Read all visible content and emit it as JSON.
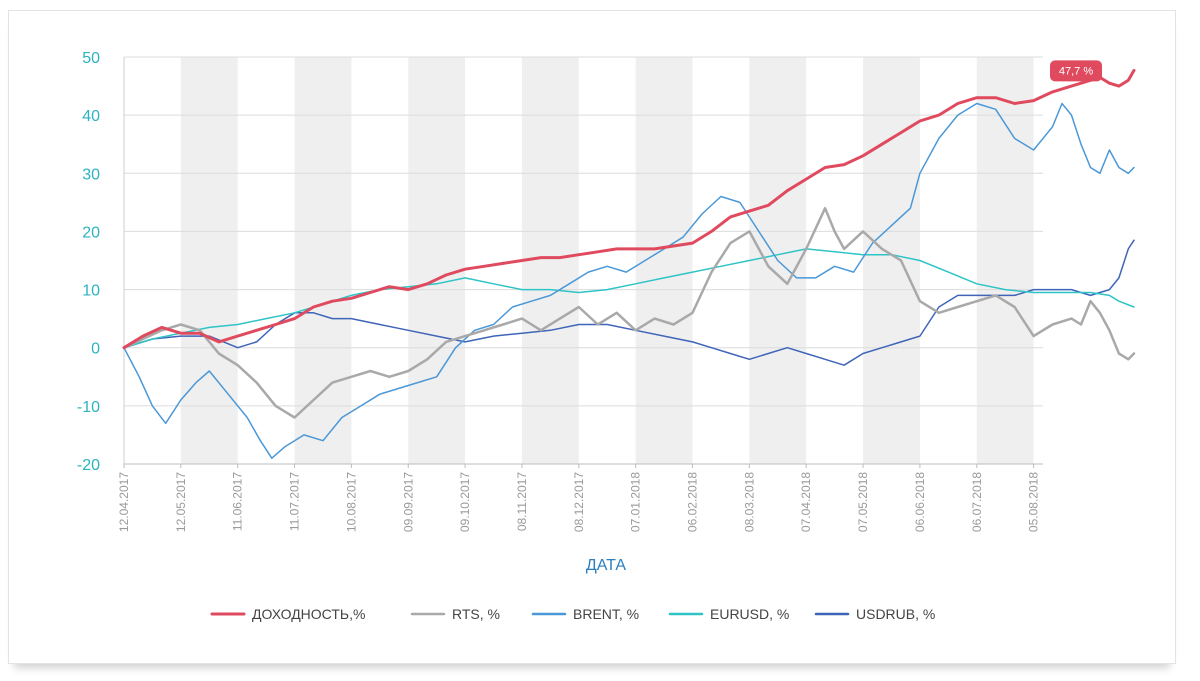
{
  "chart_data": {
    "type": "line",
    "xlabel": "ДАТА",
    "ylabel": "",
    "ylim": [
      -20,
      50
    ],
    "yticks": [
      -20,
      -10,
      0,
      10,
      20,
      30,
      40,
      50
    ],
    "x_tick_labels": [
      "12.04.2017",
      "12.05.2017",
      "11.06.2017",
      "11.07.2017",
      "10.08.2017",
      "09.09.2017",
      "09.10.2017",
      "08.11.2017",
      "08.12.2017",
      "07.01.2018",
      "06.02.2018",
      "08.03.2018",
      "07.04.2018",
      "07.05.2018",
      "06.06.2018",
      "06.07.2018",
      "05.08.2018"
    ],
    "x_period_days": 30,
    "x_end_days": 484,
    "grid": true,
    "legend_placement": "bottom",
    "end_label": "47,7 %",
    "series": [
      {
        "name": "ДОХОДНОСТЬ,%",
        "color": "#e04a5f",
        "width": 3,
        "points": [
          [
            0,
            0
          ],
          [
            10,
            2
          ],
          [
            20,
            3.5
          ],
          [
            30,
            2.5
          ],
          [
            40,
            2.5
          ],
          [
            50,
            1
          ],
          [
            60,
            2
          ],
          [
            70,
            3
          ],
          [
            80,
            4
          ],
          [
            90,
            5
          ],
          [
            100,
            7
          ],
          [
            110,
            8
          ],
          [
            120,
            8.5
          ],
          [
            130,
            9.5
          ],
          [
            140,
            10.5
          ],
          [
            150,
            10
          ],
          [
            160,
            11
          ],
          [
            170,
            12.5
          ],
          [
            180,
            13.5
          ],
          [
            190,
            14
          ],
          [
            200,
            14.5
          ],
          [
            210,
            15
          ],
          [
            220,
            15.5
          ],
          [
            230,
            15.5
          ],
          [
            240,
            16
          ],
          [
            250,
            16.5
          ],
          [
            260,
            17
          ],
          [
            270,
            17
          ],
          [
            280,
            17
          ],
          [
            290,
            17.5
          ],
          [
            300,
            18
          ],
          [
            310,
            20
          ],
          [
            320,
            22.5
          ],
          [
            330,
            23.5
          ],
          [
            340,
            24.5
          ],
          [
            350,
            27
          ],
          [
            360,
            29
          ],
          [
            370,
            31
          ],
          [
            380,
            31.5
          ],
          [
            390,
            33
          ],
          [
            400,
            35
          ],
          [
            410,
            37
          ],
          [
            420,
            39
          ],
          [
            430,
            40
          ],
          [
            440,
            42
          ],
          [
            450,
            43
          ],
          [
            460,
            43
          ],
          [
            470,
            42
          ],
          [
            480,
            42.5
          ],
          [
            490,
            44
          ],
          [
            500,
            45
          ],
          [
            510,
            46
          ],
          [
            515,
            46.5
          ],
          [
            520,
            45.5
          ],
          [
            525,
            45
          ],
          [
            530,
            46
          ],
          [
            533,
            47.7
          ]
        ]
      },
      {
        "name": "RTS, %",
        "color": "#a9a9a9",
        "width": 2.5,
        "points": [
          [
            0,
            0
          ],
          [
            10,
            1.5
          ],
          [
            20,
            3
          ],
          [
            30,
            4
          ],
          [
            40,
            3
          ],
          [
            50,
            -1
          ],
          [
            60,
            -3
          ],
          [
            70,
            -6
          ],
          [
            80,
            -10
          ],
          [
            90,
            -12
          ],
          [
            100,
            -9
          ],
          [
            110,
            -6
          ],
          [
            120,
            -5
          ],
          [
            130,
            -4
          ],
          [
            140,
            -5
          ],
          [
            150,
            -4
          ],
          [
            160,
            -2
          ],
          [
            170,
            1
          ],
          [
            180,
            2
          ],
          [
            190,
            3
          ],
          [
            200,
            4
          ],
          [
            210,
            5
          ],
          [
            220,
            3
          ],
          [
            230,
            5
          ],
          [
            240,
            7
          ],
          [
            250,
            4
          ],
          [
            260,
            6
          ],
          [
            270,
            3
          ],
          [
            280,
            5
          ],
          [
            290,
            4
          ],
          [
            300,
            6
          ],
          [
            310,
            13
          ],
          [
            320,
            18
          ],
          [
            330,
            20
          ],
          [
            340,
            14
          ],
          [
            350,
            11
          ],
          [
            360,
            17
          ],
          [
            370,
            24
          ],
          [
            375,
            20
          ],
          [
            380,
            17
          ],
          [
            390,
            20
          ],
          [
            400,
            17
          ],
          [
            410,
            15
          ],
          [
            420,
            8
          ],
          [
            430,
            6
          ],
          [
            440,
            7
          ],
          [
            450,
            8
          ],
          [
            460,
            9
          ],
          [
            470,
            7
          ],
          [
            480,
            2
          ],
          [
            490,
            4
          ],
          [
            500,
            5
          ],
          [
            505,
            4
          ],
          [
            510,
            8
          ],
          [
            515,
            6
          ],
          [
            520,
            3
          ],
          [
            525,
            -1
          ],
          [
            530,
            -2
          ],
          [
            533,
            -1
          ]
        ]
      },
      {
        "name": "BRENT, %",
        "color": "#4a98d8",
        "width": 1.5,
        "points": [
          [
            0,
            0
          ],
          [
            8,
            -5
          ],
          [
            15,
            -10
          ],
          [
            22,
            -13
          ],
          [
            30,
            -9
          ],
          [
            38,
            -6
          ],
          [
            45,
            -4
          ],
          [
            55,
            -8
          ],
          [
            65,
            -12
          ],
          [
            72,
            -16
          ],
          [
            78,
            -19
          ],
          [
            85,
            -17
          ],
          [
            95,
            -15
          ],
          [
            105,
            -16
          ],
          [
            115,
            -12
          ],
          [
            125,
            -10
          ],
          [
            135,
            -8
          ],
          [
            145,
            -7
          ],
          [
            155,
            -6
          ],
          [
            165,
            -5
          ],
          [
            175,
            0
          ],
          [
            185,
            3
          ],
          [
            195,
            4
          ],
          [
            205,
            7
          ],
          [
            215,
            8
          ],
          [
            225,
            9
          ],
          [
            235,
            11
          ],
          [
            245,
            13
          ],
          [
            255,
            14
          ],
          [
            265,
            13
          ],
          [
            275,
            15
          ],
          [
            285,
            17
          ],
          [
            295,
            19
          ],
          [
            305,
            23
          ],
          [
            315,
            26
          ],
          [
            325,
            25
          ],
          [
            335,
            20
          ],
          [
            345,
            15
          ],
          [
            355,
            12
          ],
          [
            365,
            12
          ],
          [
            375,
            14
          ],
          [
            385,
            13
          ],
          [
            395,
            18
          ],
          [
            405,
            21
          ],
          [
            415,
            24
          ],
          [
            420,
            30
          ],
          [
            430,
            36
          ],
          [
            440,
            40
          ],
          [
            450,
            42
          ],
          [
            460,
            41
          ],
          [
            470,
            36
          ],
          [
            480,
            34
          ],
          [
            490,
            38
          ],
          [
            495,
            42
          ],
          [
            500,
            40
          ],
          [
            505,
            35
          ],
          [
            510,
            31
          ],
          [
            515,
            30
          ],
          [
            520,
            34
          ],
          [
            525,
            31
          ],
          [
            530,
            30
          ],
          [
            533,
            31
          ]
        ]
      },
      {
        "name": "EURUSD, %",
        "color": "#2ec4c6",
        "width": 1.5,
        "points": [
          [
            0,
            0
          ],
          [
            15,
            1.5
          ],
          [
            30,
            2.5
          ],
          [
            45,
            3.5
          ],
          [
            60,
            4
          ],
          [
            75,
            5
          ],
          [
            90,
            6
          ],
          [
            105,
            7.5
          ],
          [
            120,
            9
          ],
          [
            135,
            10
          ],
          [
            150,
            10.5
          ],
          [
            165,
            11
          ],
          [
            180,
            12
          ],
          [
            195,
            11
          ],
          [
            210,
            10
          ],
          [
            225,
            10
          ],
          [
            240,
            9.5
          ],
          [
            255,
            10
          ],
          [
            270,
            11
          ],
          [
            285,
            12
          ],
          [
            300,
            13
          ],
          [
            315,
            14
          ],
          [
            330,
            15
          ],
          [
            345,
            16
          ],
          [
            360,
            17
          ],
          [
            375,
            16.5
          ],
          [
            390,
            16
          ],
          [
            405,
            16
          ],
          [
            420,
            15
          ],
          [
            435,
            13
          ],
          [
            450,
            11
          ],
          [
            465,
            10
          ],
          [
            480,
            9.5
          ],
          [
            495,
            9.5
          ],
          [
            510,
            9.5
          ],
          [
            520,
            9
          ],
          [
            525,
            8
          ],
          [
            533,
            7
          ]
        ]
      },
      {
        "name": "USDRUB, %",
        "color": "#3f64b8",
        "width": 1.5,
        "points": [
          [
            0,
            0
          ],
          [
            15,
            1.5
          ],
          [
            30,
            2
          ],
          [
            45,
            2
          ],
          [
            60,
            0
          ],
          [
            70,
            1
          ],
          [
            80,
            4
          ],
          [
            90,
            6
          ],
          [
            100,
            6
          ],
          [
            110,
            5
          ],
          [
            120,
            5
          ],
          [
            135,
            4
          ],
          [
            150,
            3
          ],
          [
            165,
            2
          ],
          [
            180,
            1
          ],
          [
            195,
            2
          ],
          [
            210,
            2.5
          ],
          [
            225,
            3
          ],
          [
            240,
            4
          ],
          [
            255,
            4
          ],
          [
            270,
            3
          ],
          [
            285,
            2
          ],
          [
            300,
            1
          ],
          [
            310,
            0
          ],
          [
            320,
            -1
          ],
          [
            330,
            -2
          ],
          [
            340,
            -1
          ],
          [
            350,
            0
          ],
          [
            360,
            -1
          ],
          [
            370,
            -2
          ],
          [
            380,
            -3
          ],
          [
            390,
            -1
          ],
          [
            400,
            0
          ],
          [
            410,
            1
          ],
          [
            420,
            2
          ],
          [
            430,
            7
          ],
          [
            440,
            9
          ],
          [
            450,
            9
          ],
          [
            460,
            9
          ],
          [
            470,
            9
          ],
          [
            480,
            10
          ],
          [
            490,
            10
          ],
          [
            500,
            10
          ],
          [
            510,
            9
          ],
          [
            520,
            10
          ],
          [
            525,
            12
          ],
          [
            530,
            17
          ],
          [
            533,
            18.5
          ]
        ]
      }
    ]
  }
}
